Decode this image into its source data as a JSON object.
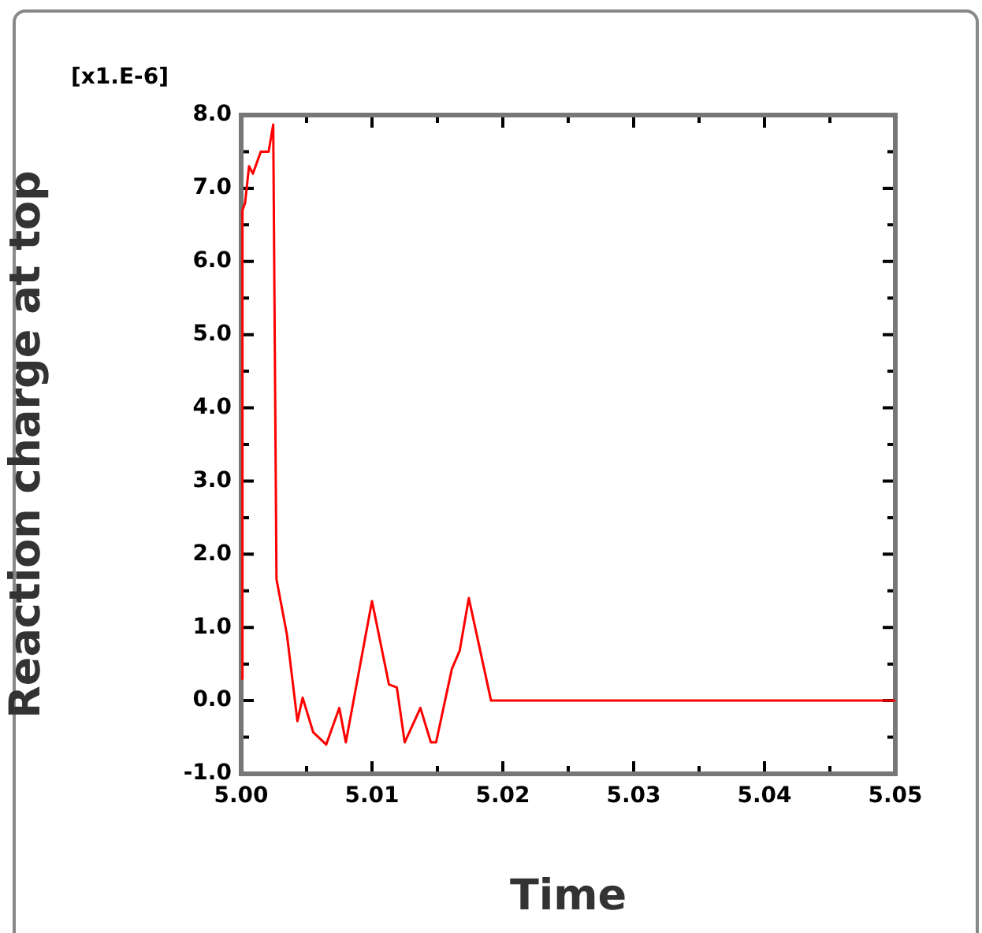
{
  "chart_data": {
    "type": "line",
    "xlabel": "Time",
    "ylabel": "Reaction charge at top",
    "annotations": [
      "[x1.E-6]"
    ],
    "x": [
      5.0,
      5.0001,
      5.0003,
      5.0006,
      5.0009,
      5.0015,
      5.0021,
      5.00245,
      5.0027,
      5.0035,
      5.0043,
      5.0047,
      5.0055,
      5.0065,
      5.0075,
      5.008,
      5.01,
      5.0113,
      5.0119,
      5.0125,
      5.0137,
      5.0145,
      5.0149,
      5.0161,
      5.0167,
      5.0174,
      5.0191,
      5.05
    ],
    "series": [
      {
        "color": "#ff0000",
        "values": [
          0.3,
          6.7,
          6.8,
          7.3,
          7.2,
          7.5,
          7.5,
          7.87,
          1.66,
          0.9,
          -0.28,
          0.04,
          -0.43,
          -0.6,
          -0.1,
          -0.57,
          1.36,
          0.22,
          0.18,
          -0.57,
          -0.1,
          -0.57,
          -0.57,
          0.43,
          0.68,
          1.4,
          0.0,
          0.0
        ]
      }
    ],
    "xlim": [
      5.0,
      5.05
    ],
    "xticks": [
      {
        "value": 5.0,
        "label": "5.00"
      },
      {
        "value": 5.005,
        "label": null
      },
      {
        "value": 5.01,
        "label": "5.01"
      },
      {
        "value": 5.015,
        "label": null
      },
      {
        "value": 5.02,
        "label": "5.02"
      },
      {
        "value": 5.025,
        "label": null
      },
      {
        "value": 5.03,
        "label": "5.03"
      },
      {
        "value": 5.035,
        "label": null
      },
      {
        "value": 5.04,
        "label": "5.04"
      },
      {
        "value": 5.045,
        "label": null
      },
      {
        "value": 5.05,
        "label": "5.05"
      }
    ],
    "ylim": [
      -1.0,
      8.0
    ],
    "yticks": [
      {
        "value": -1,
        "label": "-1.0"
      },
      {
        "value": -0.5,
        "label": null
      },
      {
        "value": 0,
        "label": "0.0"
      },
      {
        "value": 0.5,
        "label": null
      },
      {
        "value": 1,
        "label": "1.0"
      },
      {
        "value": 1.5,
        "label": null
      },
      {
        "value": 2,
        "label": "2.0"
      },
      {
        "value": 2.5,
        "label": null
      },
      {
        "value": 3,
        "label": "3.0"
      },
      {
        "value": 3.5,
        "label": null
      },
      {
        "value": 4,
        "label": "4.0"
      },
      {
        "value": 4.5,
        "label": null
      },
      {
        "value": 5,
        "label": "5.0"
      },
      {
        "value": 5.5,
        "label": null
      },
      {
        "value": 6,
        "label": "6.0"
      },
      {
        "value": 6.5,
        "label": null
      },
      {
        "value": 7,
        "label": "7.0"
      },
      {
        "value": 7.5,
        "label": null
      },
      {
        "value": 8,
        "label": "8.0"
      }
    ],
    "grid": false,
    "legend": false,
    "marker": "none",
    "line_style": "solid"
  }
}
